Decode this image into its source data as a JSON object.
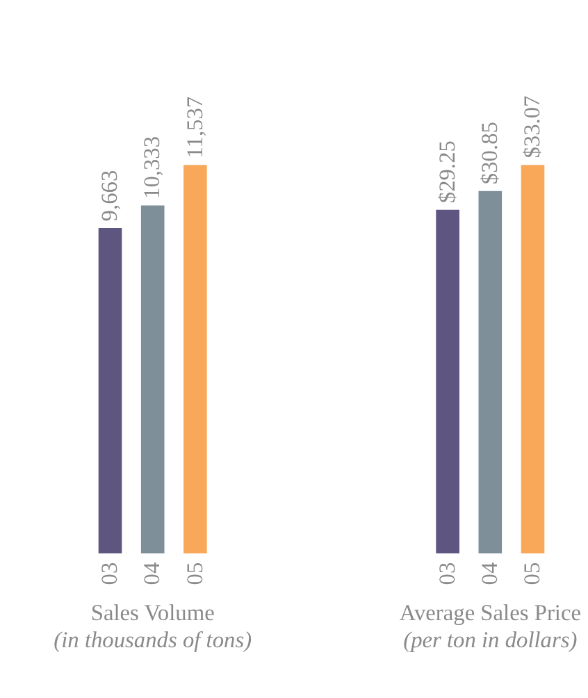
{
  "chart_data": [
    {
      "type": "bar",
      "title": "Sales Volume",
      "subtitle": "(in thousands of tons)",
      "categories": [
        "03",
        "04",
        "05"
      ],
      "values": [
        9663,
        10333,
        11537
      ],
      "value_labels": [
        "9,663",
        "10,333",
        "11,537"
      ],
      "colors": [
        "#5e5680",
        "#7f8f99",
        "#f9a85a"
      ]
    },
    {
      "type": "bar",
      "title": "Average Sales Price",
      "subtitle": "(per ton in dollars)",
      "categories": [
        "03",
        "04",
        "05"
      ],
      "values": [
        29.25,
        30.85,
        33.07
      ],
      "value_labels": [
        "$29.25",
        "$30.85",
        "$33.07"
      ],
      "colors": [
        "#5e5680",
        "#7f8f99",
        "#f9a85a"
      ]
    }
  ]
}
